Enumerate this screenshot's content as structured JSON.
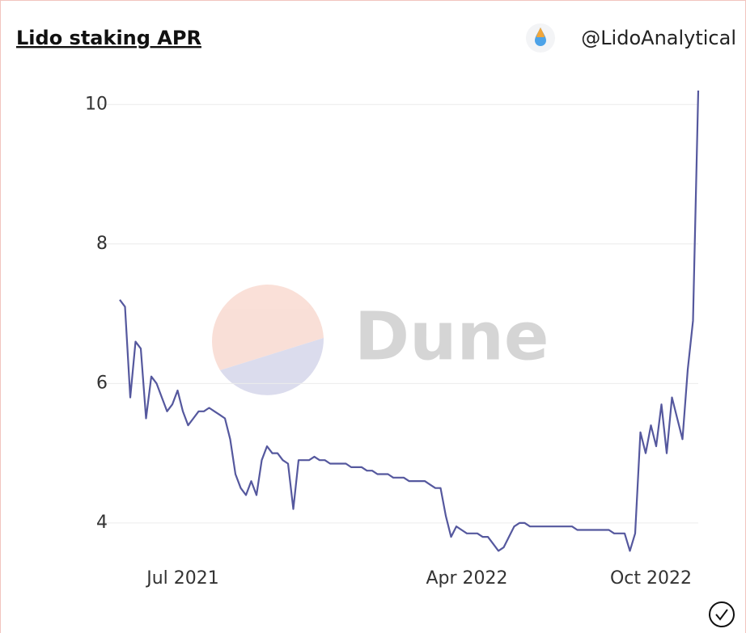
{
  "header": {
    "title": "Lido staking APR",
    "author": "@LidoAnalytical"
  },
  "watermark": "Dune",
  "chart_data": {
    "type": "line",
    "color": "#55589e",
    "grid": true,
    "ylim": [
      3.5,
      10.2
    ],
    "yticks": [
      4,
      6,
      8,
      10
    ],
    "categories": [
      null,
      null,
      null,
      null,
      null,
      null,
      null,
      null,
      null,
      null,
      null,
      null,
      "Jul 2021",
      null,
      null,
      null,
      null,
      null,
      null,
      null,
      null,
      null,
      null,
      null,
      null,
      null,
      null,
      null,
      null,
      null,
      null,
      null,
      null,
      null,
      null,
      null,
      null,
      null,
      null,
      null,
      null,
      null,
      null,
      null,
      null,
      null,
      null,
      null,
      null,
      null,
      null,
      null,
      null,
      null,
      null,
      null,
      null,
      null,
      null,
      null,
      null,
      null,
      null,
      null,
      null,
      null,
      "Apr 2022",
      null,
      null,
      null,
      null,
      null,
      null,
      null,
      null,
      null,
      null,
      null,
      null,
      null,
      null,
      null,
      null,
      null,
      null,
      null,
      null,
      null,
      null,
      null,
      null,
      null,
      null,
      null,
      null,
      null,
      null,
      null,
      null,
      null,
      null,
      "Oct 2022",
      null,
      null,
      null,
      null,
      null,
      null,
      null,
      null,
      null
    ],
    "values": [
      7.2,
      7.1,
      5.8,
      6.6,
      6.5,
      5.5,
      6.1,
      6.0,
      5.8,
      5.6,
      5.7,
      5.9,
      5.6,
      5.4,
      5.5,
      5.6,
      5.6,
      5.65,
      5.6,
      5.55,
      5.5,
      5.2,
      4.7,
      4.5,
      4.4,
      4.6,
      4.4,
      4.9,
      5.1,
      5.0,
      5.0,
      4.9,
      4.85,
      4.2,
      4.9,
      4.9,
      4.9,
      4.95,
      4.9,
      4.9,
      4.85,
      4.85,
      4.85,
      4.85,
      4.8,
      4.8,
      4.8,
      4.75,
      4.75,
      4.7,
      4.7,
      4.7,
      4.65,
      4.65,
      4.65,
      4.6,
      4.6,
      4.6,
      4.6,
      4.55,
      4.5,
      4.5,
      4.1,
      3.8,
      3.95,
      3.9,
      3.85,
      3.85,
      3.85,
      3.8,
      3.8,
      3.7,
      3.6,
      3.65,
      3.8,
      3.95,
      4.0,
      4.0,
      3.95,
      3.95,
      3.95,
      3.95,
      3.95,
      3.95,
      3.95,
      3.95,
      3.95,
      3.9,
      3.9,
      3.9,
      3.9,
      3.9,
      3.9,
      3.9,
      3.85,
      3.85,
      3.85,
      3.6,
      3.85,
      5.3,
      5.0,
      5.4,
      5.1,
      5.7,
      5.0,
      5.8,
      5.5,
      5.2,
      6.2,
      6.9,
      10.2
    ]
  }
}
